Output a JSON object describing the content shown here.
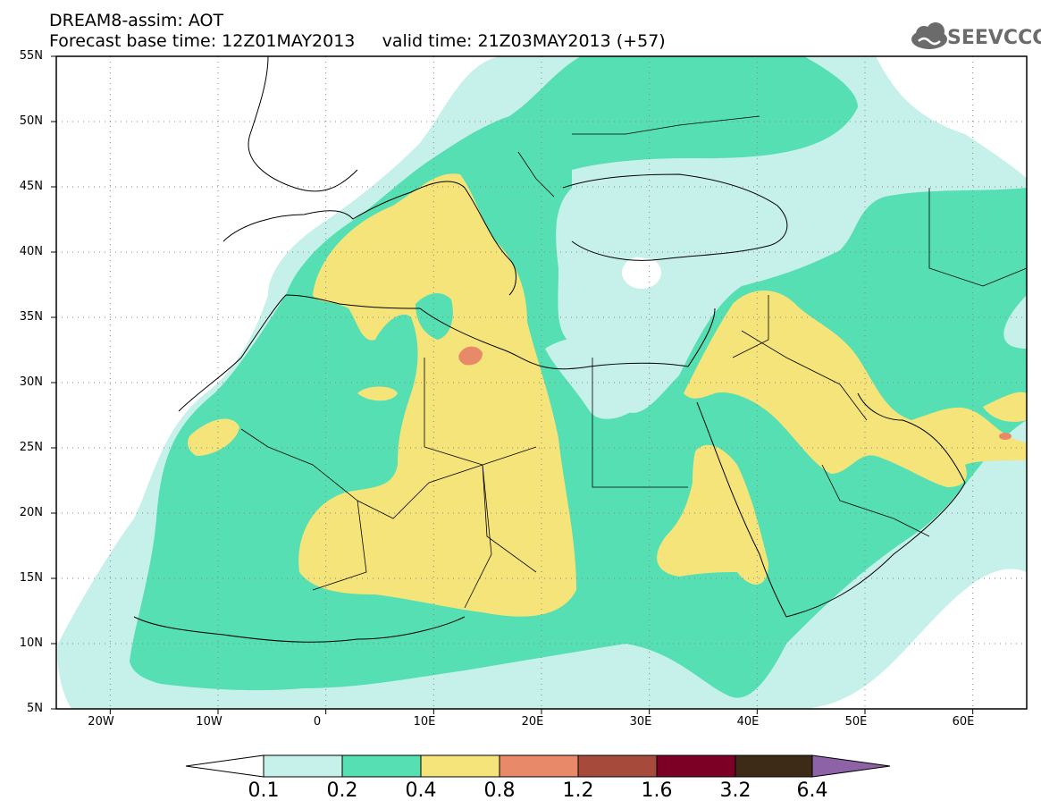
{
  "header": {
    "title_line1": "DREAM8-assim: AOT",
    "title_line2": "Forecast base time: 12Z01MAY2013     valid time: 21Z03MAY2013 (+57)"
  },
  "logo": {
    "text": "SEEVCCC",
    "icon": "cloud-icon",
    "color": "#6b6b6b"
  },
  "map": {
    "lon_range": [
      -25,
      65
    ],
    "lat_range": [
      5,
      55
    ],
    "lat_labels": [
      "55N",
      "50N",
      "45N",
      "40N",
      "35N",
      "30N",
      "25N",
      "20N",
      "15N",
      "10N",
      "5N"
    ],
    "lon_labels": [
      "20W",
      "10W",
      "0",
      "10E",
      "20E",
      "30E",
      "40E",
      "50E",
      "60E"
    ]
  },
  "colorbar": {
    "labels": [
      "0.1",
      "0.2",
      "0.4",
      "0.8",
      "1.2",
      "1.6",
      "3.2",
      "6.4"
    ],
    "colors": [
      "#ffffff",
      "#c6f0ea",
      "#55dfb2",
      "#f5e47a",
      "#e8896a",
      "#a64b3c",
      "#7c0026",
      "#3d2a17",
      "#8e62a6"
    ]
  }
}
